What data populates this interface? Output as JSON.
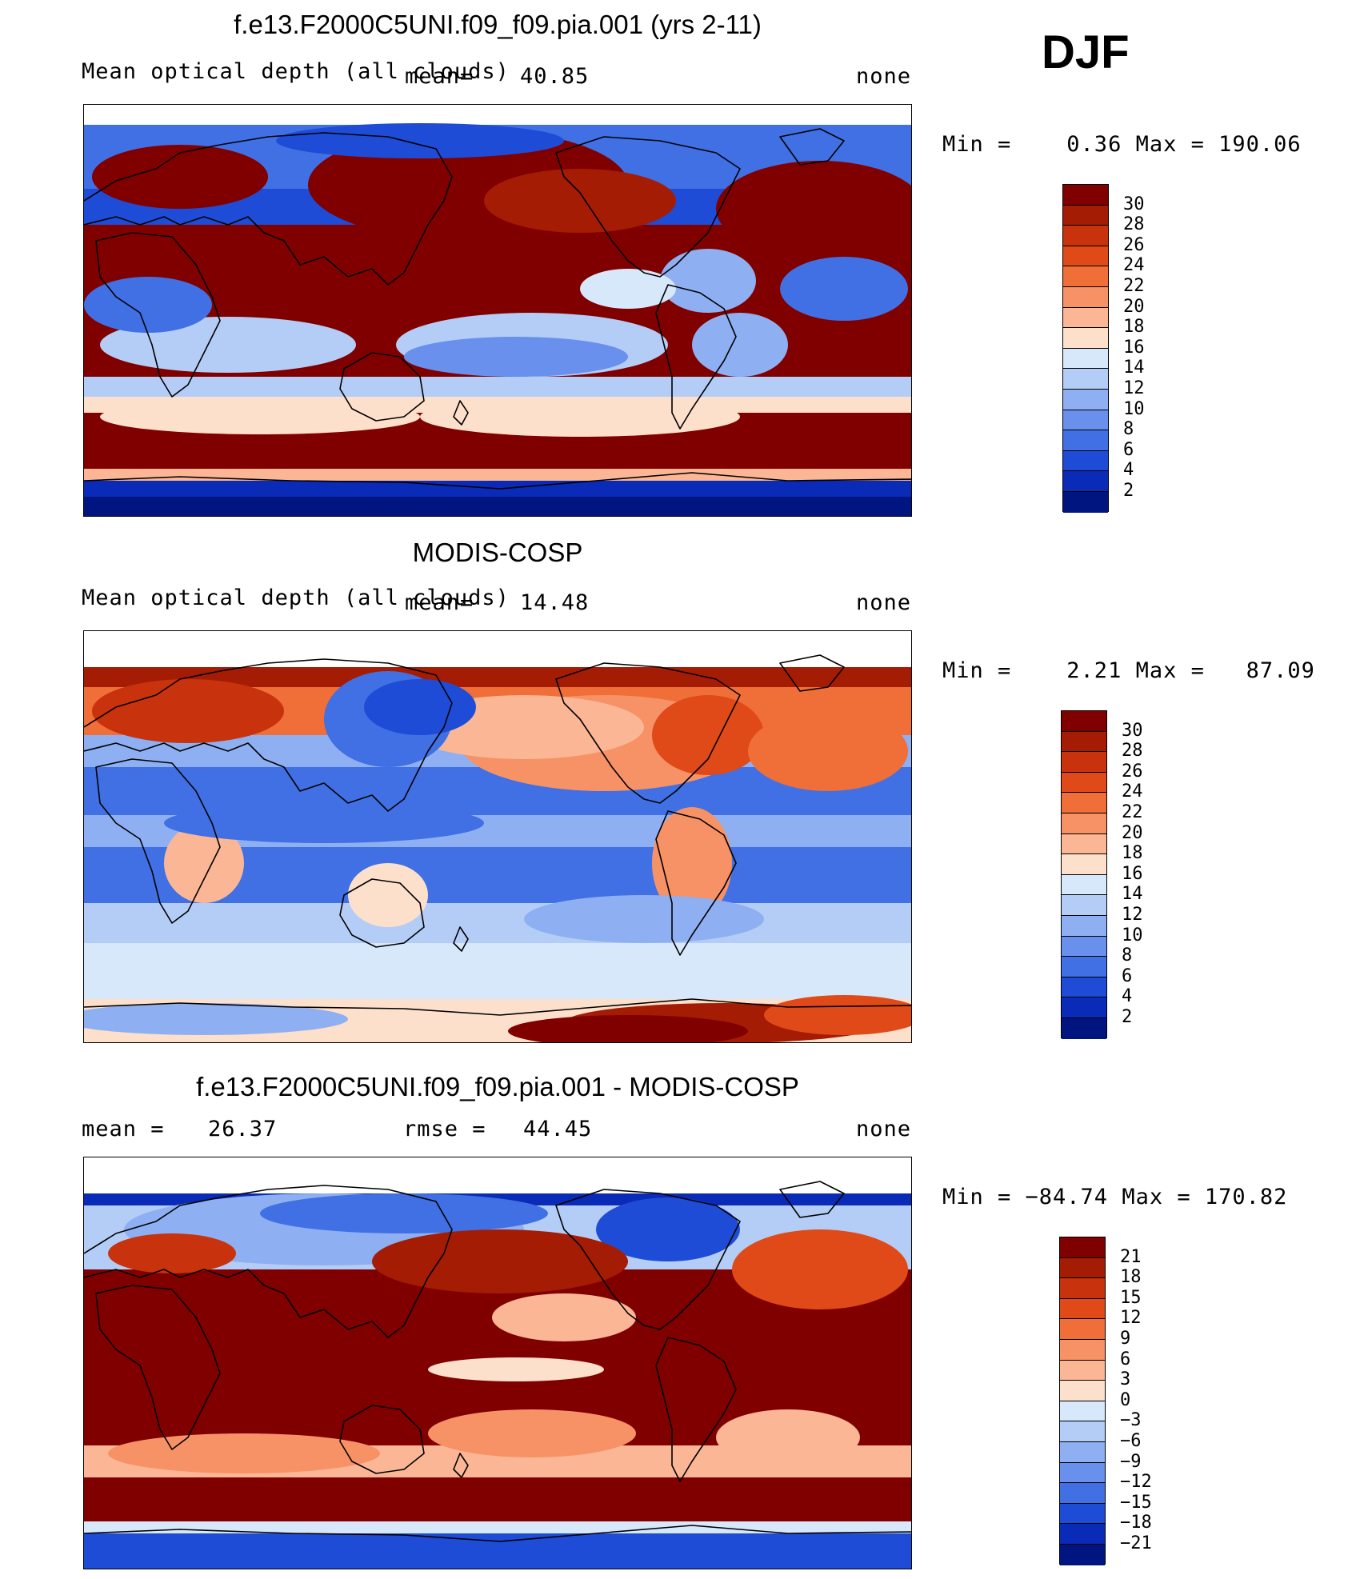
{
  "season": "DJF",
  "panels": [
    {
      "title": "f.e13.F2000C5UNI.f09_f09.pia.001 (yrs 2-11)",
      "left_label": "Mean optical depth (all clouds)",
      "center_label": "mean=",
      "center_value": "40.85",
      "right_label": "none",
      "minmax": "Min =    0.36 Max = 190.06",
      "pattern": "model"
    },
    {
      "title": "MODIS-COSP",
      "left_label": "Mean optical depth (all clouds)",
      "center_label": "mean=",
      "center_value": "14.48",
      "right_label": "none",
      "minmax": "Min =    2.21 Max =   87.09",
      "pattern": "obs"
    },
    {
      "title": "f.e13.F2000C5UNI.f09_f09.pia.001 - MODIS-COSP",
      "left_label": "mean =",
      "left_value": "26.37",
      "center_label": "rmse =",
      "center_value": "44.45",
      "right_label": "none",
      "minmax": "Min = −84.74 Max = 170.82",
      "pattern": "diff"
    }
  ],
  "colorbars": [
    {
      "labels": [
        "30",
        "28",
        "26",
        "24",
        "22",
        "20",
        "18",
        "16",
        "14",
        "12",
        "10",
        "8",
        "6",
        "4",
        "2"
      ],
      "colors": [
        "#800000",
        "#a51c05",
        "#c8320c",
        "#e04a18",
        "#f06e38",
        "#f79266",
        "#fbb696",
        "#fde0cc",
        "#d8e8fb",
        "#b4cdf6",
        "#8eb0f2",
        "#6890ec",
        "#4070e4",
        "#1e4cd6",
        "#0a2ab8",
        "#00157f"
      ]
    },
    {
      "labels": [
        "30",
        "28",
        "26",
        "24",
        "22",
        "20",
        "18",
        "16",
        "14",
        "12",
        "10",
        "8",
        "6",
        "4",
        "2"
      ],
      "colors": [
        "#800000",
        "#a51c05",
        "#c8320c",
        "#e04a18",
        "#f06e38",
        "#f79266",
        "#fbb696",
        "#fde0cc",
        "#d8e8fb",
        "#b4cdf6",
        "#8eb0f2",
        "#6890ec",
        "#4070e4",
        "#1e4cd6",
        "#0a2ab8",
        "#00157f"
      ]
    },
    {
      "labels": [
        "21",
        "18",
        "15",
        "12",
        "9",
        "6",
        "3",
        "0",
        "−3",
        "−6",
        "−9",
        "−12",
        "−15",
        "−18",
        "−21"
      ],
      "colors": [
        "#800000",
        "#a51c05",
        "#c8320c",
        "#e04a18",
        "#f06e38",
        "#f79266",
        "#fbb696",
        "#fde0cc",
        "#d8e8fb",
        "#b4cdf6",
        "#8eb0f2",
        "#6890ec",
        "#4070e4",
        "#1e4cd6",
        "#0a2ab8",
        "#00157f"
      ]
    }
  ]
}
